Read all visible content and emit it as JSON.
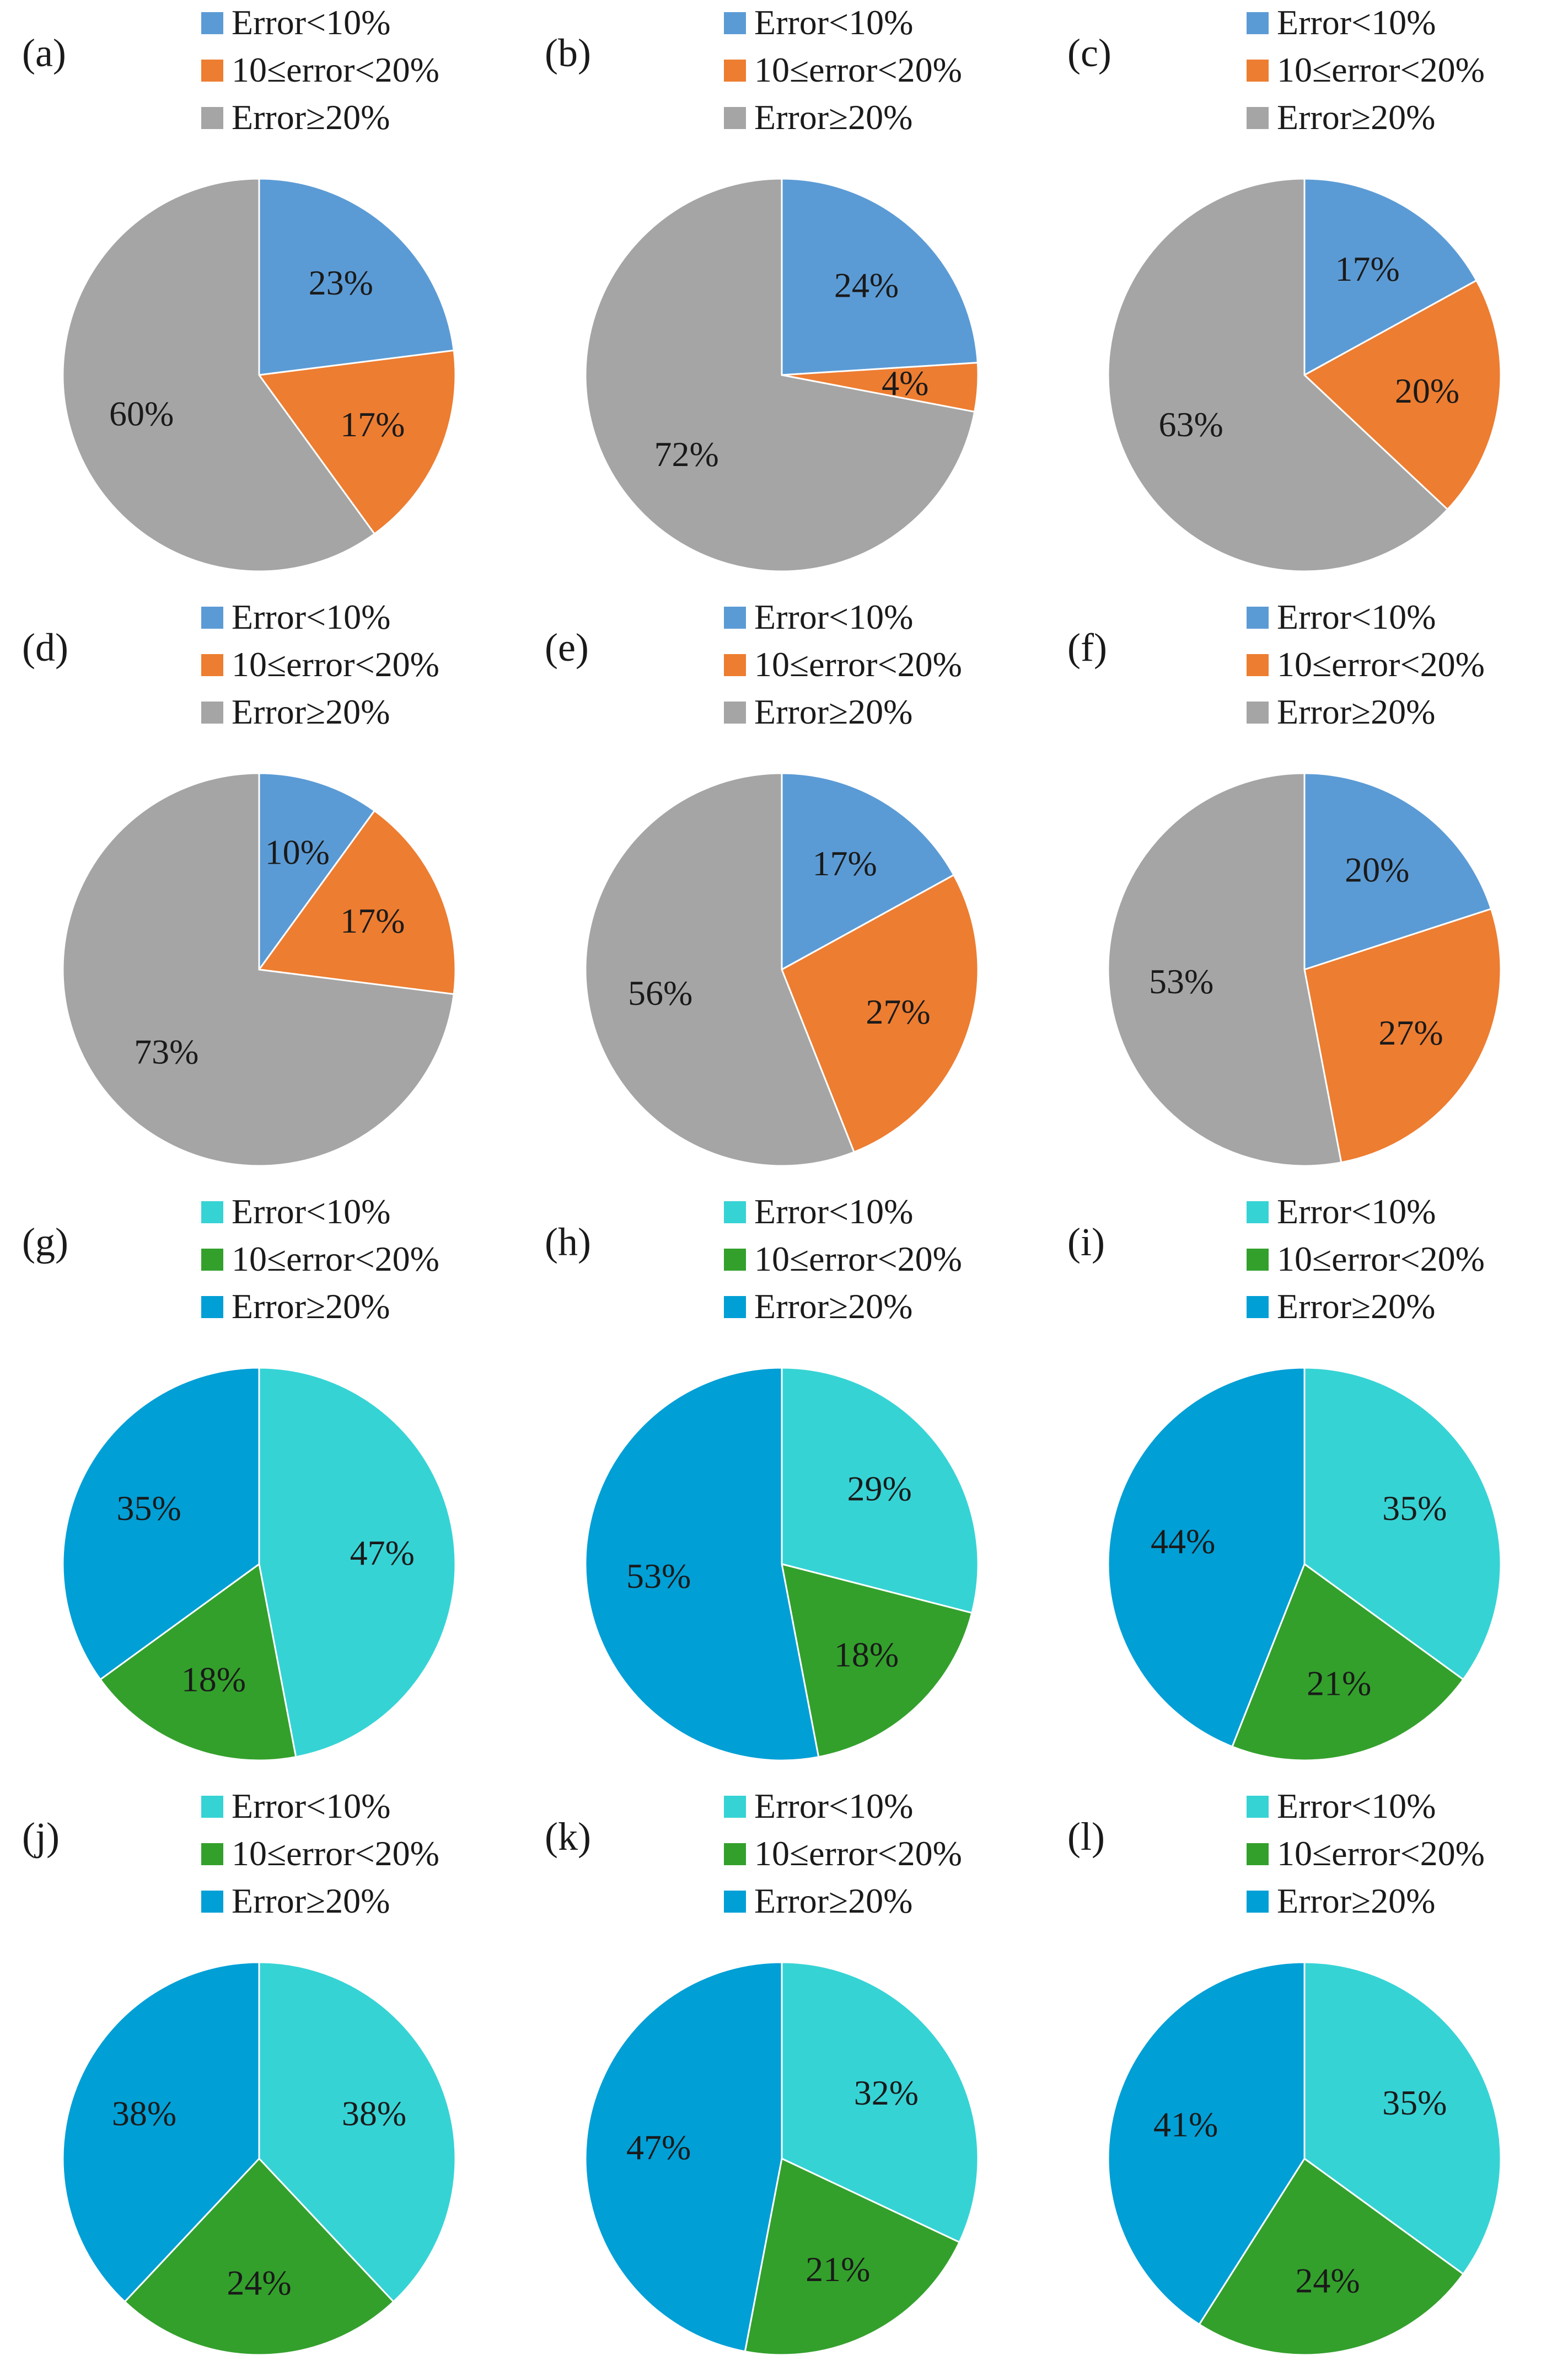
{
  "figure": {
    "colors": {
      "row1": [
        "#5b9bd5",
        "#ed7d31",
        "#a5a5a5"
      ],
      "row2": [
        "#5b9bd5",
        "#ed7d31",
        "#a5a5a5"
      ],
      "row3": [
        "#36d3d5",
        "#33a02c",
        "#009fd6"
      ],
      "row4": [
        "#36d3d5",
        "#33a02c",
        "#009fd6"
      ]
    }
  },
  "chart_data": [
    {
      "type": "pie",
      "panel": "(a)",
      "categories": [
        "Error<10%",
        "10≤error<20%",
        "Error≥20%"
      ],
      "values": [
        23,
        17,
        60
      ],
      "labels": [
        "23%",
        "17%",
        "60%"
      ],
      "colors": [
        "#5b9bd5",
        "#ed7d31",
        "#a5a5a5"
      ]
    },
    {
      "type": "pie",
      "panel": "(b)",
      "categories": [
        "Error<10%",
        "10≤error<20%",
        "Error≥20%"
      ],
      "values": [
        24,
        4,
        72
      ],
      "labels": [
        "24%",
        "4%",
        "72%"
      ],
      "colors": [
        "#5b9bd5",
        "#ed7d31",
        "#a5a5a5"
      ]
    },
    {
      "type": "pie",
      "panel": "(c)",
      "categories": [
        "Error<10%",
        "10≤error<20%",
        "Error≥20%"
      ],
      "values": [
        17,
        20,
        63
      ],
      "labels": [
        "17%",
        "20%",
        "63%"
      ],
      "colors": [
        "#5b9bd5",
        "#ed7d31",
        "#a5a5a5"
      ]
    },
    {
      "type": "pie",
      "panel": "(d)",
      "categories": [
        "Error<10%",
        "10≤error<20%",
        "Error≥20%"
      ],
      "values": [
        10,
        17,
        73
      ],
      "labels": [
        "10%",
        "17%",
        "73%"
      ],
      "colors": [
        "#5b9bd5",
        "#ed7d31",
        "#a5a5a5"
      ]
    },
    {
      "type": "pie",
      "panel": "(e)",
      "categories": [
        "Error<10%",
        "10≤error<20%",
        "Error≥20%"
      ],
      "values": [
        17,
        27,
        56
      ],
      "labels": [
        "17%",
        "27%",
        "56%"
      ],
      "colors": [
        "#5b9bd5",
        "#ed7d31",
        "#a5a5a5"
      ]
    },
    {
      "type": "pie",
      "panel": "(f)",
      "categories": [
        "Error<10%",
        "10≤error<20%",
        "Error≥20%"
      ],
      "values": [
        20,
        27,
        53
      ],
      "labels": [
        "20%",
        "27%",
        "53%"
      ],
      "colors": [
        "#5b9bd5",
        "#ed7d31",
        "#a5a5a5"
      ]
    },
    {
      "type": "pie",
      "panel": "(g)",
      "categories": [
        "Error<10%",
        "10≤error<20%",
        "Error≥20%"
      ],
      "values": [
        47,
        18,
        35
      ],
      "labels": [
        "47%",
        "18%",
        "35%"
      ],
      "colors": [
        "#36d3d5",
        "#33a02c",
        "#009fd6"
      ]
    },
    {
      "type": "pie",
      "panel": "(h)",
      "categories": [
        "Error<10%",
        "10≤error<20%",
        "Error≥20%"
      ],
      "values": [
        29,
        18,
        53
      ],
      "labels": [
        "29%",
        "18%",
        "53%"
      ],
      "colors": [
        "#36d3d5",
        "#33a02c",
        "#009fd6"
      ]
    },
    {
      "type": "pie",
      "panel": "(i)",
      "categories": [
        "Error<10%",
        "10≤error<20%",
        "Error≥20%"
      ],
      "values": [
        35,
        21,
        44
      ],
      "labels": [
        "35%",
        "21%",
        "44%"
      ],
      "colors": [
        "#36d3d5",
        "#33a02c",
        "#009fd6"
      ]
    },
    {
      "type": "pie",
      "panel": "(j)",
      "categories": [
        "Error<10%",
        "10≤error<20%",
        "Error≥20%"
      ],
      "values": [
        38,
        24,
        38
      ],
      "labels": [
        "38%",
        "24%",
        "38%"
      ],
      "colors": [
        "#36d3d5",
        "#33a02c",
        "#009fd6"
      ]
    },
    {
      "type": "pie",
      "panel": "(k)",
      "categories": [
        "Error<10%",
        "10≤error<20%",
        "Error≥20%"
      ],
      "values": [
        32,
        21,
        47
      ],
      "labels": [
        "32%",
        "21%",
        "47%"
      ],
      "colors": [
        "#36d3d5",
        "#33a02c",
        "#009fd6"
      ]
    },
    {
      "type": "pie",
      "panel": "(l)",
      "categories": [
        "Error<10%",
        "10≤error<20%",
        "Error≥20%"
      ],
      "values": [
        35,
        24,
        41
      ],
      "labels": [
        "35%",
        "24%",
        "41%"
      ],
      "colors": [
        "#36d3d5",
        "#33a02c",
        "#009fd6"
      ]
    }
  ]
}
